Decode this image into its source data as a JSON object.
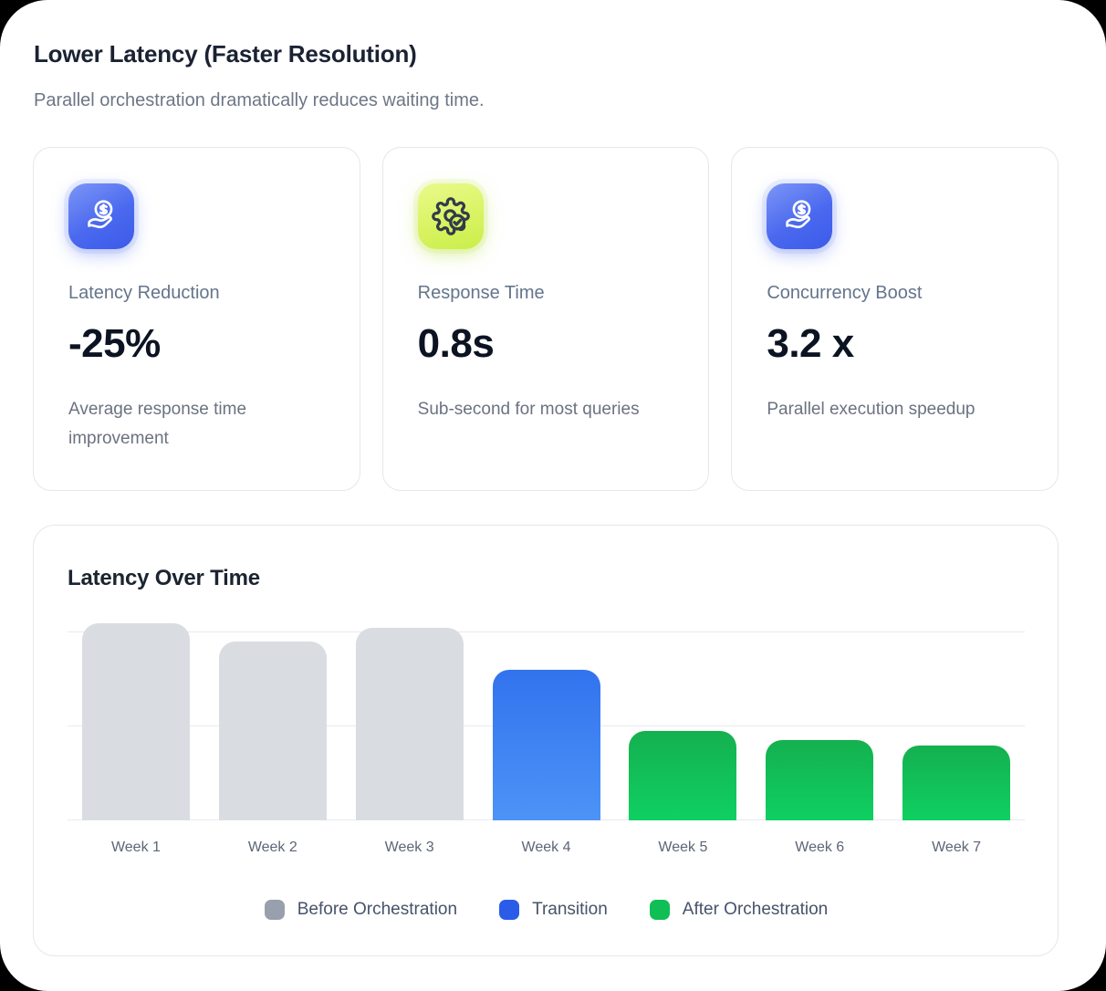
{
  "header": {
    "title": "Lower Latency (Faster Resolution)",
    "subtitle": "Parallel orchestration dramatically reduces waiting time."
  },
  "stat_cards": [
    {
      "icon": "hand-coin-icon",
      "icon_style": "blue",
      "label": "Latency Reduction",
      "value": "-25%",
      "description": "Average response time improvement"
    },
    {
      "icon": "gear-check-icon",
      "icon_style": "lime",
      "label": "Response Time",
      "value": "0.8s",
      "description": "Sub-second for most queries"
    },
    {
      "icon": "hand-coin-icon",
      "icon_style": "blue",
      "label": "Concurrency Boost",
      "value": "3.2 x",
      "description": "Parallel execution speedup"
    }
  ],
  "chart_data": {
    "type": "bar",
    "title": "Latency Over Time",
    "categories": [
      "Week 1",
      "Week 2",
      "Week 3",
      "Week 4",
      "Week 5",
      "Week 6",
      "Week 7"
    ],
    "values": [
      2.1,
      1.9,
      2.05,
      1.6,
      0.95,
      0.85,
      0.8
    ],
    "phases": [
      "before",
      "before",
      "before",
      "transition",
      "after",
      "after",
      "after"
    ],
    "xlabel": "",
    "ylabel": "",
    "ylim": [
      0,
      2.12
    ],
    "gridline_values": [
      0,
      1,
      2
    ],
    "grid": "horizontal",
    "legend_position": "bottom",
    "legend": [
      {
        "key": "before",
        "label": "Before Orchestration",
        "color": "#98a0ad"
      },
      {
        "key": "transition",
        "label": "Transition",
        "color": "#2a5ce8"
      },
      {
        "key": "after",
        "label": "After Orchestration",
        "color": "#0fbf55"
      }
    ]
  },
  "colors": {
    "blue_tile": "#4a69ef",
    "lime_tile": "#d6f25c",
    "bar_before": "#d9dde2",
    "bar_transition_top": "#3273ee",
    "bar_transition_bottom": "#4d93f7",
    "bar_after_top": "#14b04f",
    "bar_after_bottom": "#0fd062",
    "icon_stroke_dark": "#333b49",
    "icon_stroke_light": "#ffffff"
  }
}
